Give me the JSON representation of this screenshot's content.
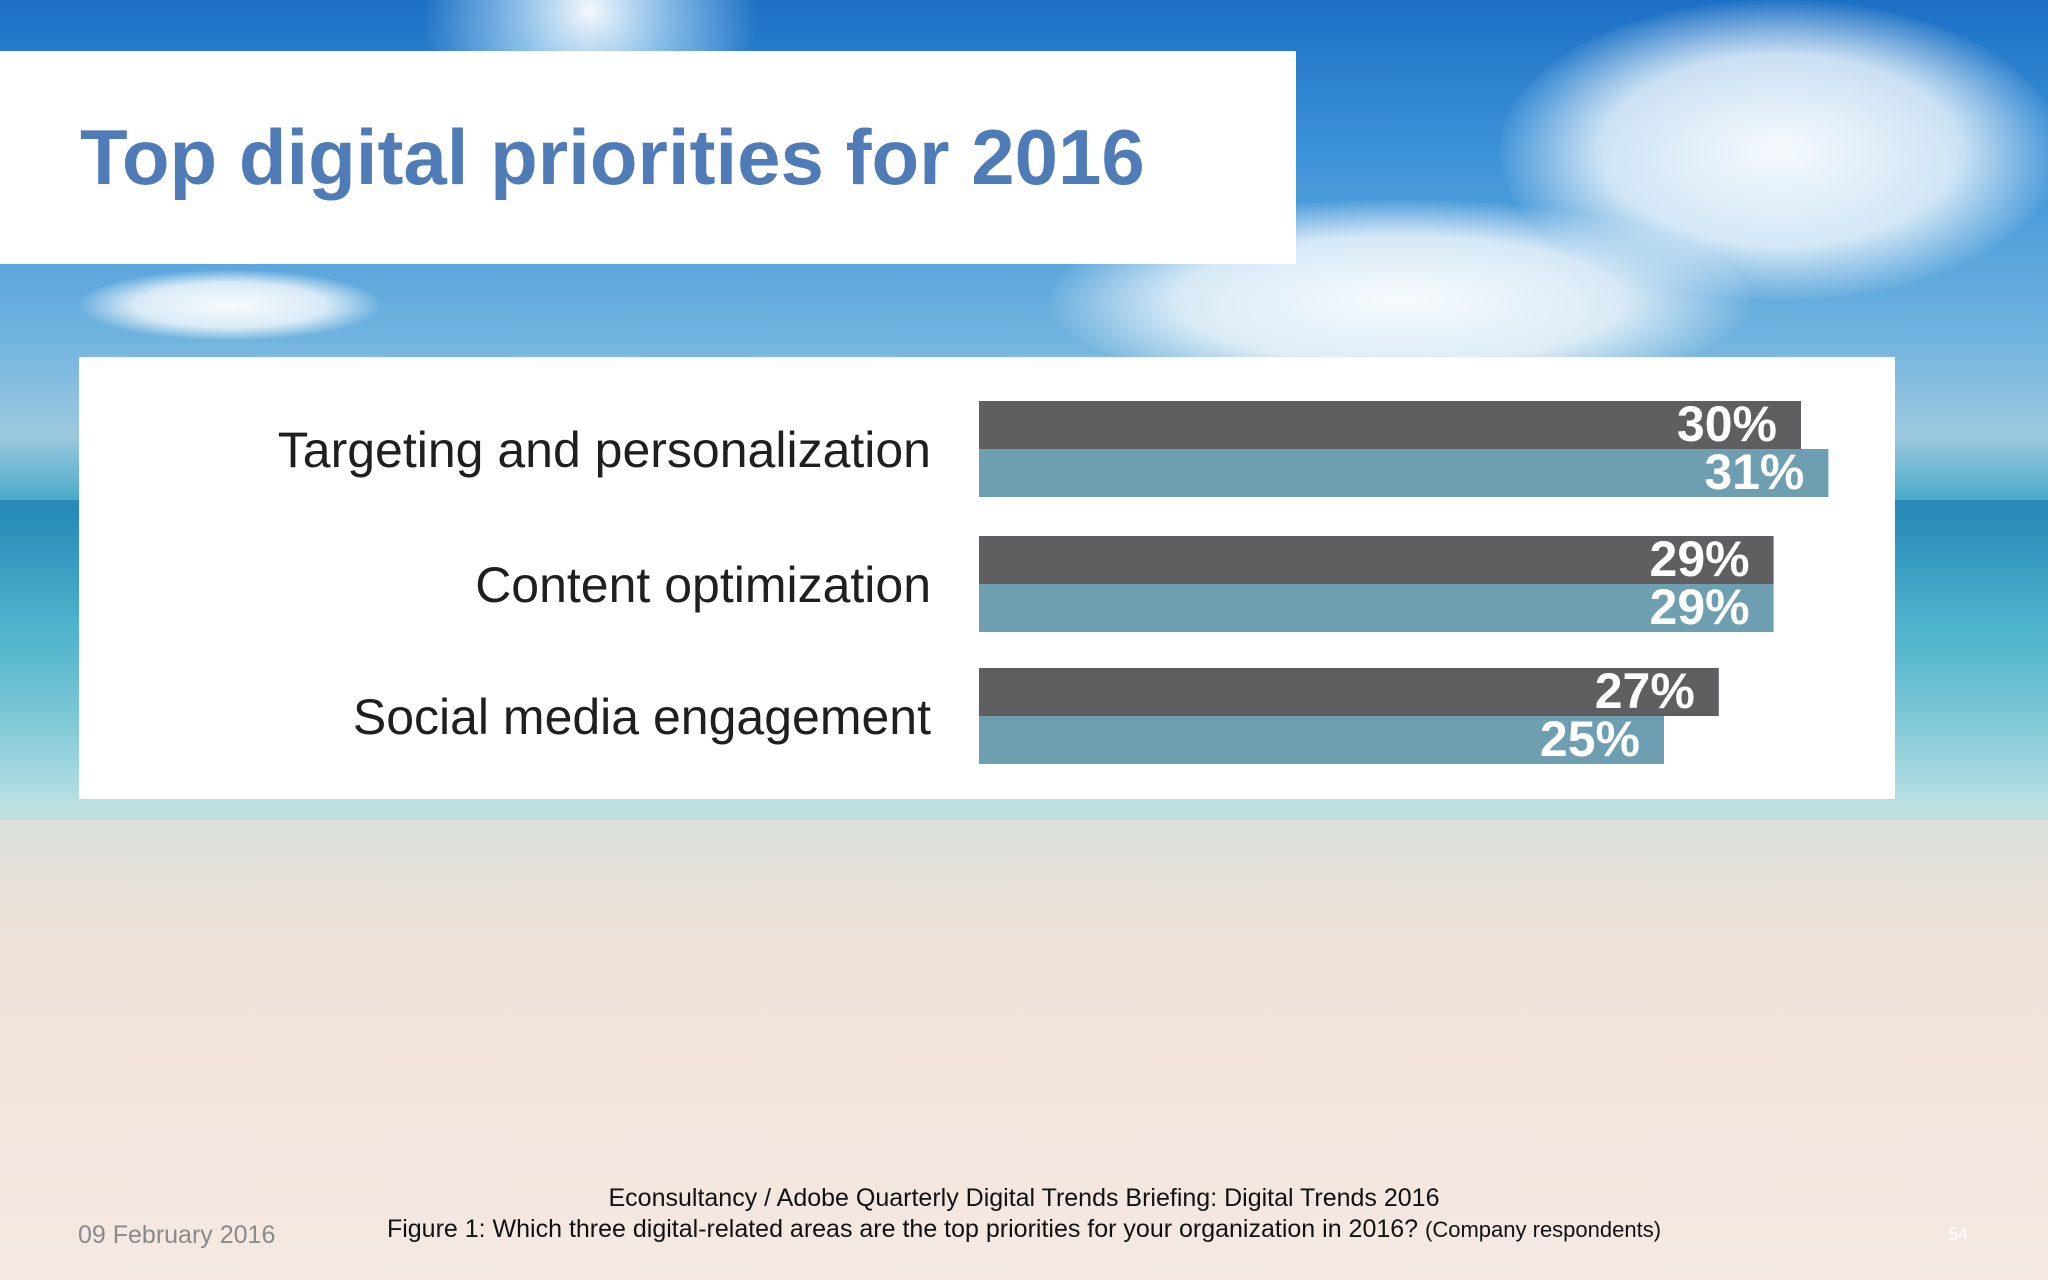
{
  "slide": {
    "title": "Top digital priorities for 2016",
    "source": "Econsultancy / Adobe Quarterly Digital Trends Briefing: Digital Trends 2016",
    "caption": "Figure 1: Which three digital-related areas are the top priorities for your organization in 2016?",
    "caption_note": "(Company respondents)",
    "date": "09 February 2016",
    "page_number": "54"
  },
  "colors": {
    "title": "#4f7bb7",
    "series_dark": "#5f5f61",
    "series_light": "#6e9fb0"
  },
  "chart_data": {
    "type": "bar",
    "orientation": "horizontal",
    "categories": [
      "Targeting and personalization",
      "Content optimization",
      "Social media engagement"
    ],
    "series": [
      {
        "values": [
          30,
          29,
          27
        ],
        "labels": [
          "30%",
          "29%",
          "27%"
        ],
        "color": "#5f5f61"
      },
      {
        "values": [
          31,
          29,
          25
        ],
        "labels": [
          "31%",
          "29%",
          "25%"
        ],
        "color": "#6e9fb0"
      }
    ],
    "unit": "%",
    "xlim": [
      0,
      31
    ],
    "grid": false,
    "legend": "none"
  }
}
